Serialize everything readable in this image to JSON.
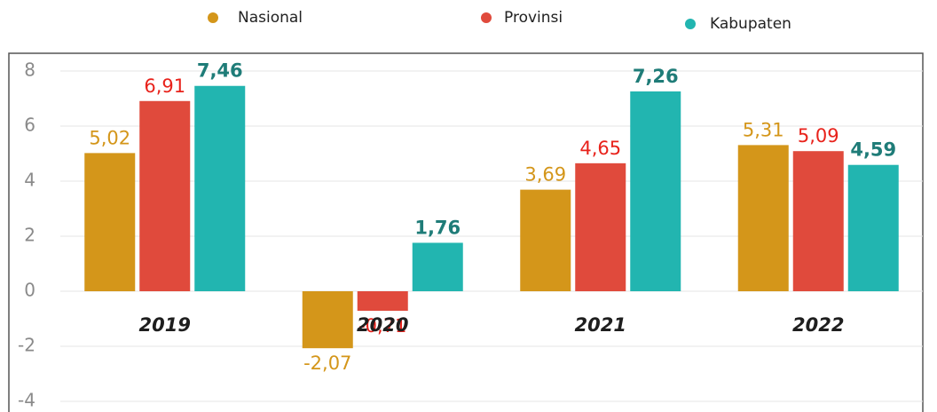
{
  "chart_data": {
    "type": "bar",
    "categories": [
      "2019",
      "2020",
      "2021",
      "2022"
    ],
    "series": [
      {
        "name": "Nasional",
        "color": "#d4961a",
        "label_color": "#d4961a",
        "values": [
          5.02,
          -2.07,
          3.69,
          5.31
        ],
        "value_labels": [
          "5,02",
          "-2,07",
          "3,69",
          "5,31"
        ]
      },
      {
        "name": "Provinsi",
        "color": "#e04a3c",
        "label_color": "#e8221b",
        "values": [
          6.91,
          -0.71,
          4.65,
          5.09
        ],
        "value_labels": [
          "6,91",
          "-0,71",
          "4,65",
          "5,09"
        ]
      },
      {
        "name": "Kabupaten",
        "color": "#22b5b0",
        "label_color": "#1f7c78",
        "values": [
          7.46,
          1.76,
          7.26,
          4.59
        ],
        "value_labels": [
          "7,46",
          "1,76",
          "7,26",
          "4,59"
        ]
      }
    ],
    "ylim": [
      -4,
      8
    ],
    "yticks": [
      -4,
      -2,
      0,
      2,
      4,
      6,
      8
    ],
    "grid": true,
    "legend": "top"
  }
}
